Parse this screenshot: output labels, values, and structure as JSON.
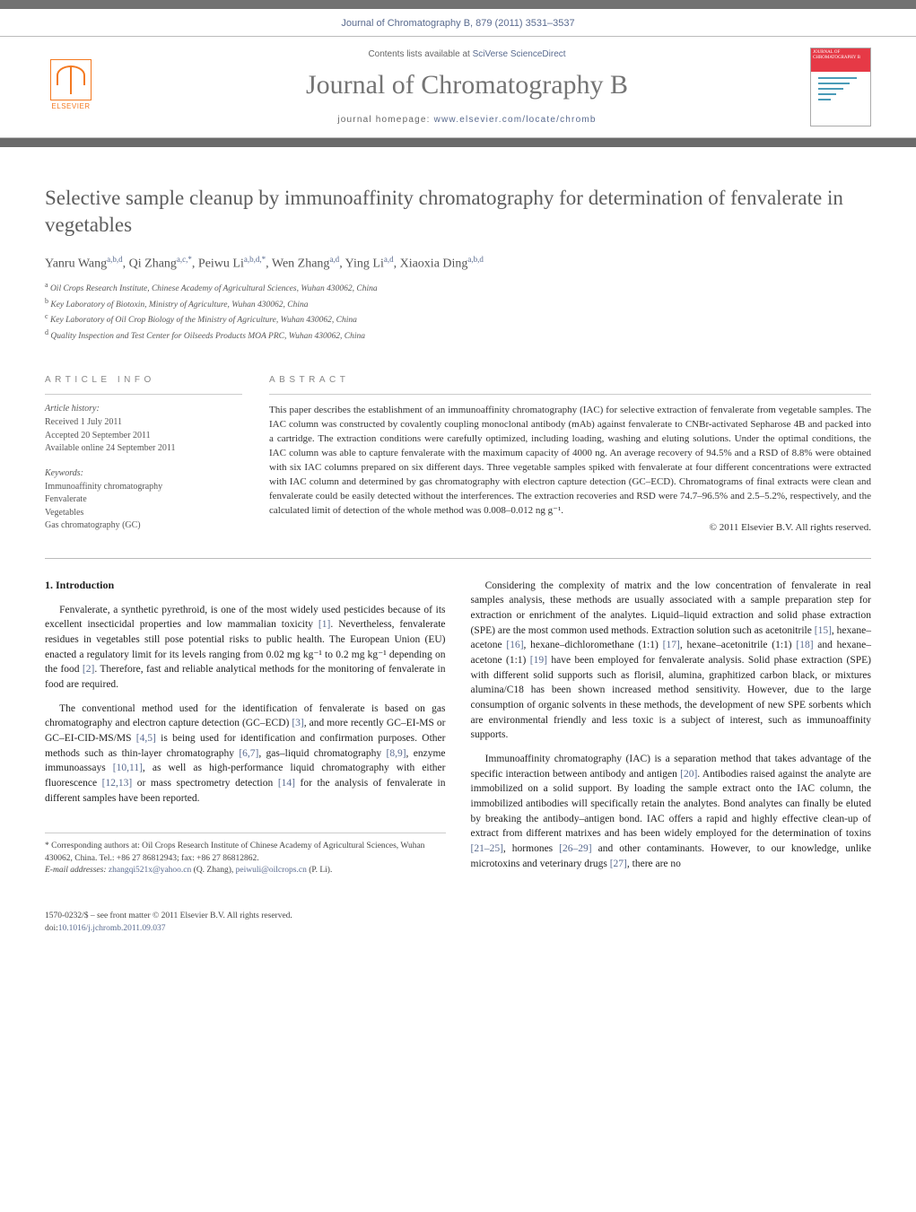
{
  "citation": "Journal of Chromatography B, 879 (2011) 3531–3537",
  "masthead": {
    "contents_prefix": "Contents lists available at ",
    "contents_link": "SciVerse ScienceDirect",
    "journal_name": "Journal of Chromatography B",
    "homepage_prefix": "journal homepage: ",
    "homepage_link": "www.elsevier.com/locate/chromb",
    "elsevier_label": "ELSEVIER",
    "cover_title": "JOURNAL OF CHROMATOGRAPHY B"
  },
  "title": "Selective sample cleanup by immunoaffinity chromatography for determination of fenvalerate in vegetables",
  "authors_html": "Yanru Wang<sup>a,b,d</sup>, Qi Zhang<sup>a,c,*</sup>, Peiwu Li<sup>a,b,d,*</sup>, Wen Zhang<sup>a,d</sup>, Ying Li<sup>a,d</sup>, Xiaoxia Ding<sup>a,b,d</sup>",
  "affiliations": [
    {
      "sup": "a",
      "text": "Oil Crops Research Institute, Chinese Academy of Agricultural Sciences, Wuhan 430062, China"
    },
    {
      "sup": "b",
      "text": "Key Laboratory of Biotoxin, Ministry of Agriculture, Wuhan 430062, China"
    },
    {
      "sup": "c",
      "text": "Key Laboratory of Oil Crop Biology of the Ministry of Agriculture, Wuhan 430062, China"
    },
    {
      "sup": "d",
      "text": "Quality Inspection and Test Center for Oilseeds Products MOA PRC, Wuhan 430062, China"
    }
  ],
  "article_info_label": "article info",
  "abstract_label": "abstract",
  "history": {
    "label": "Article history:",
    "items": [
      "Received 1 July 2011",
      "Accepted 20 September 2011",
      "Available online 24 September 2011"
    ]
  },
  "keywords": {
    "label": "Keywords:",
    "items": [
      "Immunoaffinity chromatography",
      "Fenvalerate",
      "Vegetables",
      "Gas chromatography (GC)"
    ]
  },
  "abstract": "This paper describes the establishment of an immunoaffinity chromatography (IAC) for selective extraction of fenvalerate from vegetable samples. The IAC column was constructed by covalently coupling monoclonal antibody (mAb) against fenvalerate to CNBr-activated Sepharose 4B and packed into a cartridge. The extraction conditions were carefully optimized, including loading, washing and eluting solutions. Under the optimal conditions, the IAC column was able to capture fenvalerate with the maximum capacity of 4000 ng. An average recovery of 94.5% and a RSD of 8.8% were obtained with six IAC columns prepared on six different days. Three vegetable samples spiked with fenvalerate at four different concentrations were extracted with IAC column and determined by gas chromatography with electron capture detection (GC–ECD). Chromatograms of final extracts were clean and fenvalerate could be easily detected without the interferences. The extraction recoveries and RSD were 74.7–96.5% and 2.5–5.2%, respectively, and the calculated limit of detection of the whole method was 0.008–0.012 ng g⁻¹.",
  "copyright": "© 2011 Elsevier B.V. All rights reserved.",
  "intro": {
    "heading": "1.  Introduction",
    "col1": [
      "Fenvalerate, a synthetic pyrethroid, is one of the most widely used pesticides because of its excellent insecticidal properties and low mammalian toxicity <span class=\"ref-link\">[1]</span>. Nevertheless, fenvalerate residues in vegetables still pose potential risks to public health. The European Union (EU) enacted a regulatory limit for its levels ranging from 0.02 mg kg⁻¹ to 0.2 mg kg⁻¹ depending on the food <span class=\"ref-link\">[2]</span>. Therefore, fast and reliable analytical methods for the monitoring of fenvalerate in food are required.",
      "The conventional method used for the identification of fenvalerate is based on gas chromatography and electron capture detection (GC–ECD) <span class=\"ref-link\">[3]</span>, and more recently GC–EI-MS or GC–EI-CID-MS/MS <span class=\"ref-link\">[4,5]</span> is being used for identification and confirmation purposes. Other methods such as thin-layer chromatography <span class=\"ref-link\">[6,7]</span>, gas–liquid chromatography <span class=\"ref-link\">[8,9]</span>, enzyme immunoassays <span class=\"ref-link\">[10,11]</span>, as well as high-performance liquid chromatography with either fluorescence <span class=\"ref-link\">[12,13]</span> or mass spectrometry detection <span class=\"ref-link\">[14]</span> for the analysis of fenvalerate in different samples have been reported."
    ],
    "col2": [
      "Considering the complexity of matrix and the low concentration of fenvalerate in real samples analysis, these methods are usually associated with a sample preparation step for extraction or enrichment of the analytes. Liquid–liquid extraction and solid phase extraction (SPE) are the most common used methods. Extraction solution such as acetonitrile <span class=\"ref-link\">[15]</span>, hexane–acetone <span class=\"ref-link\">[16]</span>, hexane–dichloromethane (1:1) <span class=\"ref-link\">[17]</span>, hexane–acetonitrile (1:1) <span class=\"ref-link\">[18]</span> and hexane–acetone (1:1) <span class=\"ref-link\">[19]</span> have been employed for fenvalerate analysis. Solid phase extraction (SPE) with different solid supports such as florisil, alumina, graphitized carbon black, or mixtures alumina/C18 has been shown increased method sensitivity. However, due to the large consumption of organic solvents in these methods, the development of new SPE sorbents which are environmental friendly and less toxic is a subject of interest, such as immunoaffinity supports.",
      "Immunoaffinity chromatography (IAC) is a separation method that takes advantage of the specific interaction between antibody and antigen <span class=\"ref-link\">[20]</span>. Antibodies raised against the analyte are immobilized on a solid support. By loading the sample extract onto the IAC column, the immobilized antibodies will specifically retain the analytes. Bond analytes can finally be eluted by breaking the antibody–antigen bond. IAC offers a rapid and highly effective clean-up of extract from different matrixes and has been widely employed for the determination of toxins <span class=\"ref-link\">[21–25]</span>, hormones <span class=\"ref-link\">[26–29]</span> and other contaminants. However, to our knowledge, unlike microtoxins and veterinary drugs <span class=\"ref-link\">[27]</span>, there are no"
    ]
  },
  "corr_footer": {
    "star": "* Corresponding authors at: Oil Crops Research Institute of Chinese Academy of Agricultural Sciences, Wuhan 430062, China. Tel.: +86 27 86812943; fax: +86 27 86812862.",
    "email_label": "E-mail addresses: ",
    "email1": "zhangqi521x@yahoo.cn",
    "email1_name": " (Q. Zhang), ",
    "email2": "peiwuli@oilcrops.cn",
    "email2_name": " (P. Li)."
  },
  "page_footer": {
    "left_line1": "1570-0232/$ – see front matter © 2011 Elsevier B.V. All rights reserved.",
    "left_line2_prefix": "doi:",
    "doi": "10.1016/j.jchromb.2011.09.037"
  }
}
